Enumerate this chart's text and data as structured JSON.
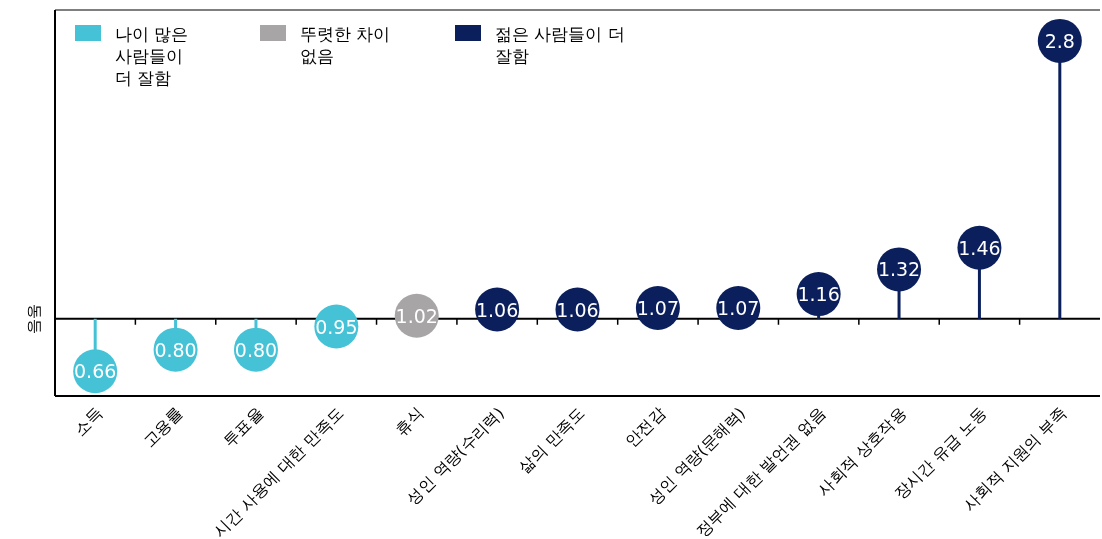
{
  "chart_data": {
    "type": "lollipop",
    "categories": [
      "소득",
      "고용률",
      "투표율",
      "시간 사용에 대한 만족도",
      "휴식",
      "성인 역량(수리력)",
      "삶의 만족도",
      "안전감",
      "성인 역량(문해력)",
      "정부에 대한 발언권 없음",
      "사회적 상호작용",
      "장시간 유급 노동",
      "사회적 지원의 부족"
    ],
    "series": [
      {
        "name": "나이 많은 사람들이 더 잘함",
        "color": "#45c2d6",
        "values": [
          0.66,
          0.8,
          0.8,
          0.95,
          null,
          null,
          null,
          null,
          null,
          null,
          null,
          null,
          null
        ],
        "value_labels": [
          "0.66",
          "0.80",
          "0.80",
          "0.95",
          null,
          null,
          null,
          null,
          null,
          null,
          null,
          null,
          null
        ]
      },
      {
        "name": "뚜렷한 차이 없음",
        "color": "#a8a5a6",
        "values": [
          null,
          null,
          null,
          null,
          1.02,
          null,
          null,
          null,
          null,
          null,
          null,
          null,
          null
        ]
      },
      {
        "name": "젊은 사람들이 더 잘함",
        "color": "#0a1f5c",
        "values": [
          null,
          null,
          null,
          null,
          null,
          1.06,
          1.06,
          1.07,
          1.07,
          1.16,
          1.32,
          1.46,
          2.8
        ]
      }
    ],
    "ylim": [
      0.5,
      3.0
    ],
    "ref_lines": [
      {
        "axis": "y",
        "value": 1,
        "label": "동등"
      }
    ],
    "data_labels": true,
    "tick_labels": "x",
    "legend": "top left"
  }
}
